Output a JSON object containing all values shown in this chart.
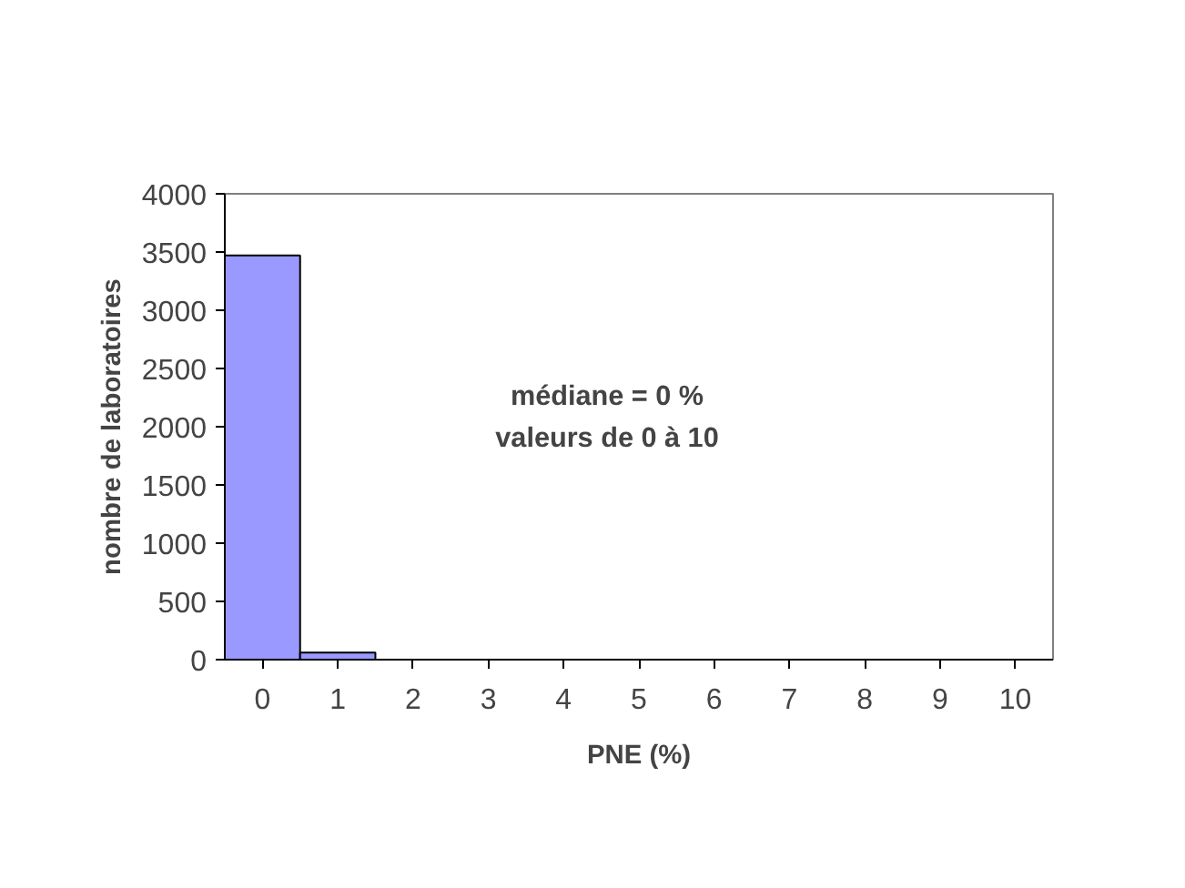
{
  "chart_data": {
    "type": "bar",
    "xlabel": "PNE (%)",
    "ylabel": "nombre de laboratoires",
    "categories": [
      "0",
      "1",
      "2",
      "3",
      "4",
      "5",
      "6",
      "7",
      "8",
      "9",
      "10"
    ],
    "values": [
      3470,
      60,
      0,
      0,
      0,
      0,
      0,
      0,
      0,
      0,
      0
    ],
    "color": "#9999ff",
    "ylim": [
      0,
      4000
    ],
    "yticks": [
      0,
      500,
      1000,
      1500,
      2000,
      2500,
      3000,
      3500,
      4000
    ],
    "grid": false,
    "annotations": [
      "médiane = 0 %",
      "valeurs de 0 à 10"
    ]
  }
}
